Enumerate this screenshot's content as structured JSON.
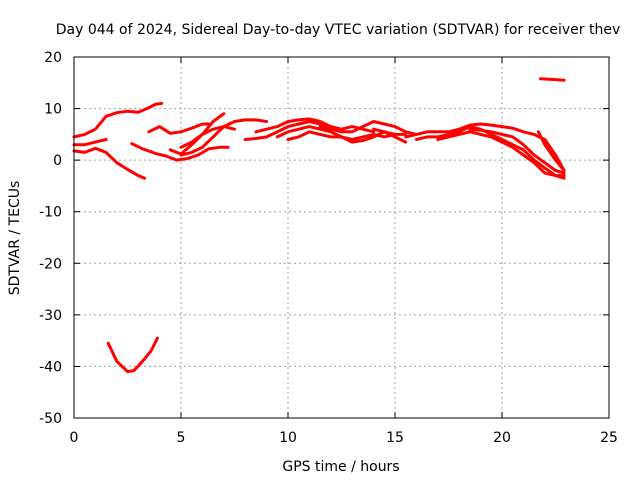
{
  "chart_data": {
    "type": "line",
    "title": "Day 044 of 2024, Sidereal Day-to-day VTEC variation (SDTVAR) for receiver thev",
    "xlabel": "GPS time / hours",
    "ylabel": "SDTVAR / TECUs",
    "xlim": [
      0,
      25
    ],
    "ylim": [
      -50,
      20
    ],
    "xticks": [
      0,
      5,
      10,
      15,
      20,
      25
    ],
    "yticks": [
      -50,
      -40,
      -30,
      -20,
      -10,
      0,
      10,
      20
    ],
    "grid": true,
    "color": "#ff0000",
    "series": [
      {
        "name": "arc-1",
        "points": [
          [
            0,
            4.5
          ],
          [
            0.5,
            5
          ],
          [
            1,
            6
          ],
          [
            1.5,
            8.5
          ],
          [
            2,
            9.2
          ],
          [
            2.5,
            9.5
          ],
          [
            3,
            9.3
          ],
          [
            3.4,
            10
          ],
          [
            3.8,
            10.8
          ],
          [
            4.1,
            11
          ]
        ]
      },
      {
        "name": "arc-2",
        "points": [
          [
            0,
            1.8
          ],
          [
            0.5,
            1.5
          ],
          [
            1,
            2.3
          ],
          [
            1.5,
            1.5
          ],
          [
            2,
            -0.5
          ],
          [
            2.5,
            -1.8
          ],
          [
            3,
            -3
          ],
          [
            3.3,
            -3.5
          ]
        ]
      },
      {
        "name": "arc-3",
        "points": [
          [
            0,
            3
          ],
          [
            0.5,
            3
          ],
          [
            1,
            3.5
          ],
          [
            1.5,
            4
          ]
        ]
      },
      {
        "name": "arc-4",
        "points": [
          [
            1.6,
            -35.5
          ],
          [
            2,
            -39
          ],
          [
            2.5,
            -41
          ],
          [
            2.8,
            -40.8
          ],
          [
            3.2,
            -39
          ],
          [
            3.6,
            -37
          ],
          [
            3.9,
            -34.5
          ]
        ]
      },
      {
        "name": "arc-5",
        "points": [
          [
            2.7,
            3.2
          ],
          [
            3.2,
            2.2
          ],
          [
            3.8,
            1.3
          ],
          [
            4.3,
            0.8
          ],
          [
            4.8,
            0
          ],
          [
            5.3,
            0.3
          ],
          [
            5.8,
            1
          ],
          [
            6.3,
            2.2
          ],
          [
            6.8,
            2.5
          ],
          [
            7.2,
            2.5
          ]
        ]
      },
      {
        "name": "arc-6",
        "points": [
          [
            3.5,
            5.5
          ],
          [
            4,
            6.5
          ],
          [
            4.5,
            5.2
          ],
          [
            5,
            5.5
          ],
          [
            5.5,
            6.2
          ],
          [
            6,
            7
          ],
          [
            6.3,
            7
          ]
        ]
      },
      {
        "name": "arc-7",
        "points": [
          [
            4.5,
            2
          ],
          [
            5,
            1.2
          ],
          [
            5.5,
            3
          ],
          [
            6,
            5
          ],
          [
            6.5,
            7.5
          ],
          [
            7,
            9
          ]
        ]
      },
      {
        "name": "arc-8",
        "points": [
          [
            5,
            1
          ],
          [
            5.5,
            1.5
          ],
          [
            6,
            2.5
          ],
          [
            6.5,
            4.5
          ],
          [
            7,
            6.5
          ],
          [
            7.5,
            7.5
          ],
          [
            8,
            7.8
          ],
          [
            8.5,
            7.8
          ],
          [
            9,
            7.5
          ]
        ]
      },
      {
        "name": "arc-9",
        "points": [
          [
            5,
            2.5
          ],
          [
            5.5,
            3.5
          ],
          [
            6,
            5
          ],
          [
            6.5,
            6
          ],
          [
            7,
            6.5
          ],
          [
            7.5,
            6
          ]
        ]
      },
      {
        "name": "arc-10",
        "points": [
          [
            8,
            4
          ],
          [
            8.5,
            4.2
          ],
          [
            9,
            4.5
          ],
          [
            9.5,
            5.5
          ],
          [
            10,
            6.5
          ],
          [
            10.5,
            7
          ],
          [
            11,
            7.5
          ],
          [
            11.5,
            7
          ],
          [
            12,
            6
          ]
        ]
      },
      {
        "name": "arc-11",
        "points": [
          [
            8.5,
            5.5
          ],
          [
            9,
            6
          ],
          [
            9.5,
            6.5
          ],
          [
            10,
            7.5
          ],
          [
            10.5,
            7.8
          ],
          [
            11,
            8
          ],
          [
            11.5,
            7.5
          ],
          [
            12,
            6.5
          ],
          [
            12.5,
            6
          ],
          [
            13,
            6.5
          ],
          [
            13.5,
            6
          ],
          [
            14,
            5.5
          ]
        ]
      },
      {
        "name": "arc-12",
        "points": [
          [
            9.5,
            4.5
          ],
          [
            10,
            5.5
          ],
          [
            10.5,
            6
          ],
          [
            11,
            6.5
          ],
          [
            11.5,
            6
          ],
          [
            12,
            5.5
          ],
          [
            12.5,
            4.5
          ],
          [
            13,
            4
          ],
          [
            13.5,
            4.5
          ],
          [
            14,
            5
          ],
          [
            14.5,
            4.5
          ],
          [
            15,
            5
          ]
        ]
      },
      {
        "name": "arc-13",
        "points": [
          [
            10,
            4
          ],
          [
            10.5,
            4.5
          ],
          [
            11,
            5.5
          ],
          [
            11.5,
            5
          ],
          [
            12,
            4.5
          ],
          [
            12.5,
            4.5
          ],
          [
            13,
            3.5
          ],
          [
            13.5,
            3.8
          ],
          [
            14,
            4.5
          ],
          [
            14.5,
            5.5
          ],
          [
            15,
            4.5
          ],
          [
            15.5,
            3.5
          ]
        ]
      },
      {
        "name": "arc-14",
        "points": [
          [
            11.5,
            6.5
          ],
          [
            12,
            6
          ],
          [
            12.5,
            5.5
          ],
          [
            13,
            5.5
          ],
          [
            13.5,
            6.5
          ],
          [
            14,
            7.5
          ],
          [
            14.5,
            7
          ],
          [
            15,
            6.5
          ],
          [
            15.5,
            5.5
          ],
          [
            16,
            5
          ]
        ]
      },
      {
        "name": "arc-15",
        "points": [
          [
            14,
            6
          ],
          [
            14.5,
            5.5
          ],
          [
            15,
            5
          ],
          [
            15.5,
            5
          ]
        ]
      },
      {
        "name": "arc-16",
        "points": [
          [
            15.5,
            4.5
          ],
          [
            16,
            5
          ],
          [
            16.5,
            5.5
          ],
          [
            17,
            5.5
          ],
          [
            17.5,
            5.5
          ],
          [
            18,
            6
          ],
          [
            18.5,
            6.8
          ],
          [
            19,
            7
          ],
          [
            19.5,
            6.8
          ],
          [
            20,
            6.5
          ],
          [
            20.5,
            6.2
          ],
          [
            21,
            5.5
          ],
          [
            21.5,
            5
          ],
          [
            22,
            4
          ],
          [
            22.5,
            1
          ],
          [
            22.9,
            -2
          ]
        ]
      },
      {
        "name": "arc-17",
        "points": [
          [
            16,
            4
          ],
          [
            16.5,
            4.5
          ],
          [
            17,
            4.5
          ],
          [
            17.5,
            5
          ],
          [
            18,
            5.5
          ],
          [
            18.5,
            6.5
          ],
          [
            19,
            6
          ],
          [
            19.5,
            5
          ],
          [
            20,
            4
          ],
          [
            20.5,
            3
          ],
          [
            21,
            2
          ],
          [
            21.5,
            0
          ],
          [
            22,
            -1.5
          ],
          [
            22.5,
            -3
          ],
          [
            22.9,
            -3.5
          ]
        ]
      },
      {
        "name": "arc-18",
        "points": [
          [
            17,
            4
          ],
          [
            17.5,
            4.5
          ],
          [
            18,
            5
          ],
          [
            18.5,
            5.5
          ],
          [
            19,
            5
          ],
          [
            19.5,
            4.5
          ],
          [
            20,
            3.5
          ],
          [
            20.5,
            2.5
          ],
          [
            21,
            1
          ],
          [
            21.5,
            -0.5
          ],
          [
            22,
            -2.5
          ],
          [
            22.5,
            -3
          ],
          [
            22.9,
            -3
          ]
        ]
      },
      {
        "name": "arc-19",
        "points": [
          [
            18.5,
            6
          ],
          [
            19,
            5.8
          ],
          [
            19.5,
            5.5
          ],
          [
            20,
            5
          ],
          [
            20.5,
            4.5
          ],
          [
            21,
            3
          ],
          [
            21.5,
            1
          ],
          [
            22,
            -0.5
          ],
          [
            22.5,
            -2
          ],
          [
            22.9,
            -2.5
          ]
        ]
      },
      {
        "name": "arc-20",
        "points": [
          [
            21.7,
            5.5
          ],
          [
            22,
            3
          ],
          [
            22.5,
            0
          ],
          [
            22.9,
            -2
          ]
        ]
      },
      {
        "name": "arc-21",
        "points": [
          [
            21.8,
            15.8
          ],
          [
            22.2,
            15.7
          ],
          [
            22.6,
            15.6
          ],
          [
            22.9,
            15.5
          ]
        ]
      }
    ]
  }
}
